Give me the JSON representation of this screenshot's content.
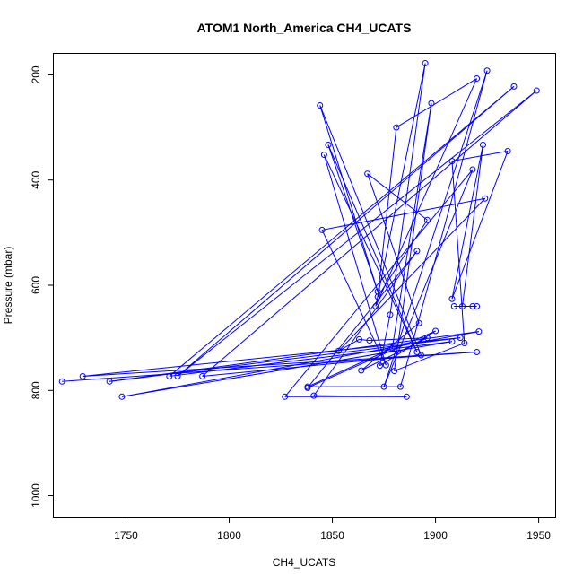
{
  "chart_data": {
    "type": "line",
    "title": "ATOM1 North_America CH4_UCATS",
    "xlabel": "CH4_UCATS",
    "ylabel": "Pressure (mbar)",
    "xlim": [
      1715,
      1958
    ],
    "ylim": [
      1040,
      160
    ],
    "y_axis_inverted": true,
    "x_ticks": [
      1750,
      1800,
      1850,
      1900,
      1950
    ],
    "y_ticks": [
      200,
      400,
      600,
      800,
      1000
    ],
    "grid": false,
    "legend": "none",
    "series_color": "#0000ff",
    "marker": "open-circle",
    "series": [
      {
        "points": [
          [
            1719,
            783
          ],
          [
            1920,
            727
          ],
          [
            1729,
            773
          ],
          [
            1912,
            700
          ],
          [
            1742,
            783
          ],
          [
            1921,
            688
          ],
          [
            1748,
            812
          ],
          [
            1908,
            707
          ],
          [
            1771,
            773
          ],
          [
            1938,
            222
          ],
          [
            1775,
            773
          ],
          [
            1949,
            230
          ],
          [
            1787,
            773
          ],
          [
            1893,
            733
          ],
          [
            1844,
            258
          ],
          [
            1872,
            612
          ],
          [
            1848,
            333
          ],
          [
            1891,
            727
          ],
          [
            1846,
            352
          ],
          [
            1876,
            752
          ],
          [
            1845,
            495
          ],
          [
            1924,
            435
          ],
          [
            1853,
            725
          ],
          [
            1863,
            703
          ],
          [
            1868,
            705
          ],
          [
            1896,
            700
          ],
          [
            1864,
            762
          ],
          [
            1892,
            672
          ],
          [
            1867,
            388
          ],
          [
            1896,
            476
          ],
          [
            1872,
            622
          ],
          [
            1881,
            300
          ],
          [
            1920,
            207
          ],
          [
            1871,
            640
          ],
          [
            1895,
            178
          ],
          [
            1878,
            656
          ],
          [
            1873,
            753
          ],
          [
            1900,
            687
          ],
          [
            1838,
            795
          ],
          [
            1891,
            535
          ],
          [
            1841,
            810
          ],
          [
            1886,
            812
          ],
          [
            1827,
            812
          ],
          [
            1918,
            380
          ],
          [
            1875,
            793
          ],
          [
            1925,
            192
          ],
          [
            1883,
            793
          ],
          [
            1838,
            793
          ],
          [
            1879,
            720
          ],
          [
            1898,
            254
          ],
          [
            1880,
            763
          ],
          [
            1914,
            710
          ],
          [
            1908,
            364
          ],
          [
            1935,
            345
          ],
          [
            1908,
            626
          ],
          [
            1923,
            333
          ],
          [
            1913,
            640
          ],
          [
            1918,
            640
          ],
          [
            1920,
            640
          ],
          [
            1909,
            640
          ]
        ]
      }
    ]
  }
}
